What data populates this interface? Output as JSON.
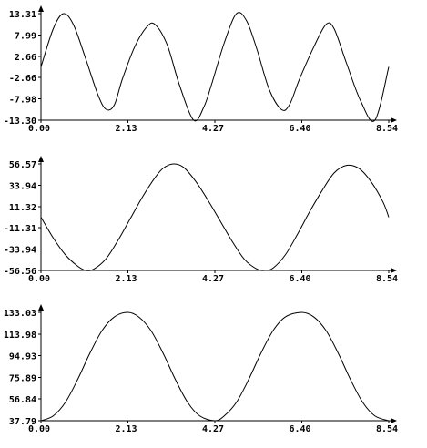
{
  "chart_data": [
    {
      "type": "line",
      "title": "",
      "xlabel": "",
      "ylabel": "",
      "grid": false,
      "xlim": [
        0.0,
        8.54
      ],
      "ylim": [
        -13.3,
        13.31
      ],
      "x_ticks": [
        "0.00",
        "2.13",
        "4.27",
        "6.40",
        "8.54"
      ],
      "y_ticks": [
        "-13.30",
        "-7.98",
        "-2.66",
        "2.66",
        "7.99",
        "13.31"
      ],
      "series": [
        {
          "x": [
            0.0,
            0.3,
            0.55,
            0.8,
            1.1,
            1.4,
            1.6,
            1.8,
            2.0,
            2.3,
            2.6,
            2.8,
            3.1,
            3.4,
            3.75,
            4.0,
            4.2,
            4.5,
            4.8,
            5.05,
            5.3,
            5.6,
            5.9,
            6.1,
            6.35,
            6.7,
            7.0,
            7.2,
            7.5,
            7.85,
            8.2,
            8.54
          ],
          "y": [
            0.0,
            9.5,
            13.3,
            10.5,
            2.0,
            -7.0,
            -10.6,
            -9.5,
            -3.0,
            5.0,
            10.0,
            10.6,
            5.5,
            -4.5,
            -13.3,
            -10.0,
            -4.0,
            6.0,
            13.3,
            11.5,
            4.5,
            -5.5,
            -10.6,
            -9.5,
            -3.0,
            5.0,
            10.6,
            9.5,
            1.0,
            -8.5,
            -13.3,
            0.0
          ]
        }
      ]
    },
    {
      "type": "line",
      "title": "",
      "xlabel": "",
      "ylabel": "",
      "grid": false,
      "xlim": [
        0.0,
        8.54
      ],
      "ylim": [
        -56.56,
        56.57
      ],
      "x_ticks": [
        "0.00",
        "2.13",
        "4.27",
        "6.40",
        "8.54"
      ],
      "y_ticks": [
        "-56.56",
        "-33.94",
        "-11.31",
        "11.32",
        "33.94",
        "56.57"
      ],
      "series": [
        {
          "x": [
            0.0,
            0.3,
            0.6,
            0.9,
            1.1,
            1.3,
            1.6,
            1.9,
            2.2,
            2.5,
            2.8,
            3.0,
            3.25,
            3.5,
            3.8,
            4.1,
            4.4,
            4.7,
            5.0,
            5.3,
            5.5,
            5.7,
            6.0,
            6.3,
            6.6,
            6.9,
            7.2,
            7.5,
            7.8,
            8.1,
            8.4,
            8.54
          ],
          "y": [
            0.0,
            -22.0,
            -40.0,
            -52.0,
            -56.56,
            -55.0,
            -44.0,
            -24.0,
            -1.0,
            22.0,
            42.0,
            52.0,
            56.57,
            53.0,
            38.0,
            18.0,
            -4.0,
            -26.0,
            -45.0,
            -55.0,
            -56.56,
            -54.0,
            -40.0,
            -18.0,
            6.0,
            28.0,
            47.0,
            55.0,
            52.0,
            38.0,
            16.0,
            0.0
          ]
        }
      ]
    },
    {
      "type": "line",
      "title": "",
      "xlabel": "",
      "ylabel": "",
      "grid": false,
      "xlim": [
        0.0,
        8.54
      ],
      "ylim": [
        37.79,
        133.03
      ],
      "x_ticks": [
        "0.00",
        "2.13",
        "4.27",
        "6.40",
        "8.54"
      ],
      "y_ticks": [
        "37.79",
        "56.84",
        "75.89",
        "94.93",
        "113.98",
        "133.03"
      ],
      "series": [
        {
          "x": [
            0.0,
            0.3,
            0.6,
            0.9,
            1.2,
            1.5,
            1.8,
            2.13,
            2.4,
            2.7,
            3.0,
            3.3,
            3.6,
            3.9,
            4.27,
            4.5,
            4.8,
            5.1,
            5.4,
            5.7,
            6.0,
            6.4,
            6.7,
            7.0,
            7.3,
            7.6,
            7.9,
            8.2,
            8.54
          ],
          "y": [
            37.79,
            42.0,
            54.0,
            74.0,
            97.0,
            117.0,
            129.0,
            133.03,
            129.0,
            117.0,
            97.0,
            74.0,
            54.0,
            42.0,
            37.79,
            42.0,
            54.0,
            74.0,
            97.0,
            117.0,
            129.0,
            133.03,
            129.0,
            117.0,
            97.0,
            74.0,
            54.0,
            42.0,
            37.79
          ]
        }
      ]
    }
  ]
}
